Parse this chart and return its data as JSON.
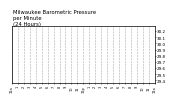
{
  "title": "Milwaukee Barometric Pressure\nper Minute\n(24 Hours)",
  "title_fontsize": 3.8,
  "bg_color": "#ffffff",
  "plot_bg_color": "#ffffff",
  "dot_color": "#ff0000",
  "dot_size": 0.4,
  "grid_color": "#aaaaaa",
  "grid_style": "--",
  "ylim_min": 29.35,
  "ylim_max": 30.28,
  "xlim_min": 0,
  "xlim_max": 1440,
  "y_tick_values": [
    29.4,
    29.5,
    29.6,
    29.7,
    29.8,
    29.9,
    30.0,
    30.1,
    30.2
  ],
  "x_tick_positions": [
    0,
    60,
    120,
    180,
    240,
    300,
    360,
    420,
    480,
    540,
    600,
    660,
    720,
    780,
    840,
    900,
    960,
    1020,
    1080,
    1140,
    1200,
    1260,
    1320,
    1380,
    1440
  ],
  "x_tick_labels": [
    "12a",
    "1",
    "2",
    "3",
    "4",
    "5",
    "6",
    "7",
    "8",
    "9",
    "10",
    "11",
    "12p",
    "1",
    "2",
    "3",
    "4",
    "5",
    "6",
    "7",
    "8",
    "9",
    "10",
    "11",
    "12a"
  ],
  "pressure_start": 30.22,
  "pressure_end": 29.4,
  "noise_scale": 0.012,
  "n_points": 1440,
  "label_fontsize": 2.5,
  "ytick_fontsize": 3.0
}
